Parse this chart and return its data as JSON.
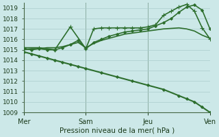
{
  "bg_color": "#cce8e8",
  "grid_color": "#aacccc",
  "line_color": "#2d6e2d",
  "title": "Pression niveau de la mer( hPa )",
  "ylim": [
    1009,
    1019.5
  ],
  "yticks": [
    1009,
    1010,
    1011,
    1012,
    1013,
    1014,
    1015,
    1016,
    1017,
    1018,
    1019
  ],
  "xlim": [
    0,
    24
  ],
  "day_positions": [
    0,
    8,
    16,
    24
  ],
  "day_labels": [
    "Mer",
    "Sam",
    "Jeu",
    "Ven"
  ],
  "series": [
    {
      "x": [
        0,
        1,
        2,
        3,
        4,
        5,
        6,
        7,
        8,
        9,
        10,
        11,
        12,
        13,
        14,
        15,
        16,
        17,
        18,
        19,
        20,
        21,
        22,
        23,
        24
      ],
      "y": [
        1015.0,
        1015.1,
        1015.1,
        1015.2,
        1015.2,
        1015.3,
        1015.5,
        1015.7,
        1015.2,
        1015.6,
        1015.9,
        1016.1,
        1016.3,
        1016.5,
        1016.6,
        1016.7,
        1016.8,
        1016.9,
        1017.0,
        1017.05,
        1017.1,
        1017.0,
        1016.8,
        1016.4,
        1016.1
      ],
      "marker": null,
      "linewidth": 1.2,
      "linestyle": "-"
    },
    {
      "x": [
        0,
        1,
        2,
        3,
        4,
        5,
        6,
        7,
        8,
        9,
        10,
        11,
        12,
        13,
        14,
        15,
        16,
        17,
        18,
        19,
        20,
        21,
        22,
        23,
        24
      ],
      "y": [
        1015.1,
        1015.0,
        1015.1,
        1015.0,
        1015.0,
        1015.2,
        1015.5,
        1015.9,
        1015.1,
        1015.7,
        1016.0,
        1016.3,
        1016.5,
        1016.7,
        1016.8,
        1016.9,
        1017.0,
        1017.3,
        1017.6,
        1018.0,
        1018.6,
        1019.1,
        1019.3,
        1018.8,
        1017.0
      ],
      "marker": "D",
      "markersize": 2.0,
      "linewidth": 1.2,
      "linestyle": "-"
    },
    {
      "x": [
        0,
        2,
        4,
        6,
        8,
        9,
        10,
        11,
        12,
        13,
        14,
        15,
        16,
        17,
        18,
        19,
        20,
        21,
        22,
        23,
        24
      ],
      "y": [
        1015.2,
        1015.2,
        1015.0,
        1017.2,
        1015.1,
        1017.0,
        1017.1,
        1017.1,
        1017.1,
        1017.1,
        1017.1,
        1017.1,
        1017.2,
        1017.4,
        1018.3,
        1018.7,
        1019.1,
        1019.35,
        1018.7,
        1017.1,
        1016.05
      ],
      "marker": "+",
      "markersize": 4,
      "linewidth": 1.2,
      "linestyle": "-"
    },
    {
      "x": [
        0,
        1,
        2,
        3,
        4,
        5,
        6,
        7,
        8,
        10,
        12,
        14,
        16,
        18,
        20,
        21,
        22,
        23,
        24
      ],
      "y": [
        1014.8,
        1014.6,
        1014.4,
        1014.2,
        1014.0,
        1013.8,
        1013.6,
        1013.4,
        1013.2,
        1012.8,
        1012.4,
        1012.0,
        1011.6,
        1011.2,
        1010.6,
        1010.3,
        1010.0,
        1009.5,
        1009.0
      ],
      "marker": "D",
      "markersize": 2.0,
      "linewidth": 1.5,
      "linestyle": "-"
    }
  ]
}
